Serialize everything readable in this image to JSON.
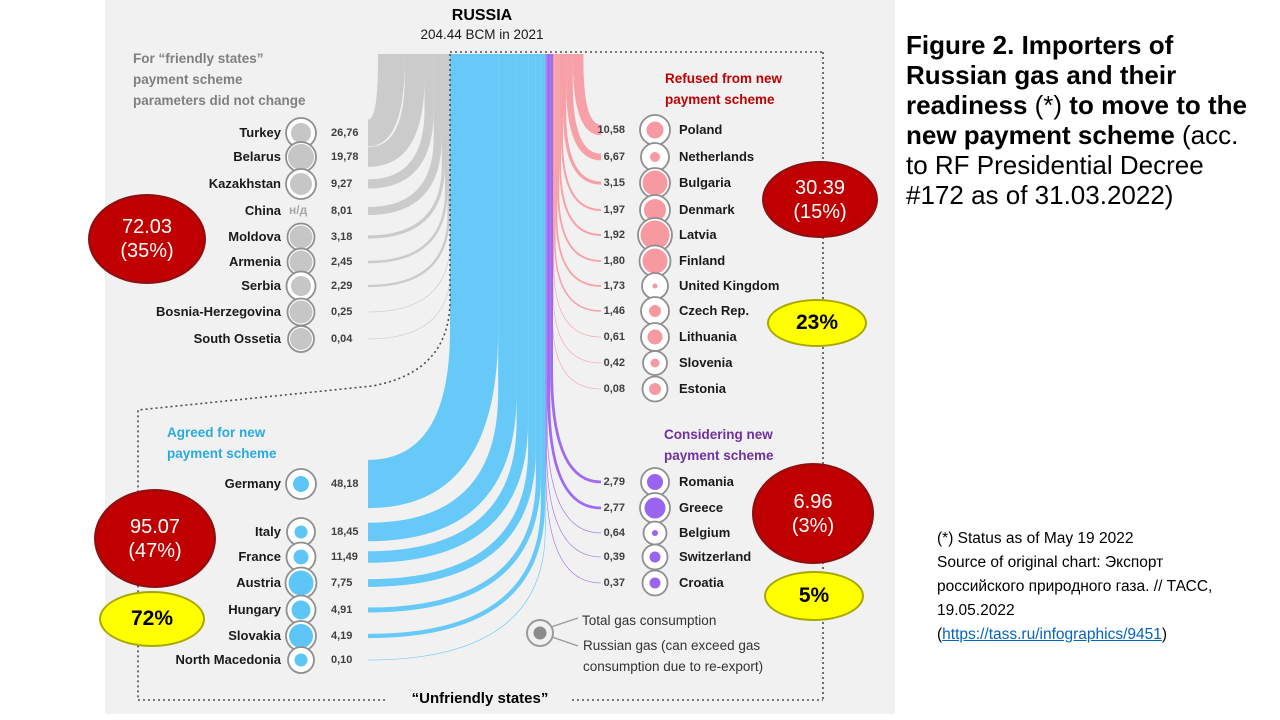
{
  "figure_caption": {
    "bold1": "Figure 2. Importers of Russian gas and their readiness ",
    "star": "(*)",
    "bold2": " to move to the new payment scheme",
    "regular": " (acc. to RF Presidential Decree #172 as of 31.03.2022)"
  },
  "source_note": {
    "status_line": "(*) Status as of May 19 2022",
    "source_text": "Source of original chart: Экспорт российского природного газа. // ТАСС, 19.05.2022",
    "link_prefix": "(",
    "link_text": "https://tass.ru/infographics/9451",
    "link_suffix": ")"
  },
  "chart_data": {
    "type": "sankey",
    "title": "RUSSIA",
    "subtitle": "204.44 BCM in 2021",
    "unit": "BCM",
    "total": 204.44,
    "unfriendly_label": "“Unfriendly states”",
    "legend": {
      "total_label": "Total gas consumption",
      "russian_label": "Russian gas (can exceed gas consumption  due to re-export)",
      "total_color": "#f1f1f1",
      "russian_color": "#8c8c8c"
    },
    "groups": [
      {
        "id": "friendly",
        "header": "For “friendly states”\npayment scheme\nparameters did not change",
        "header_color": "#7f7f7f",
        "flow_color": "#c8c8c8",
        "circle_color": "#c6c6c6",
        "total": {
          "value": "72.03",
          "share": "(35%)"
        },
        "countries": [
          {
            "name": "Turkey",
            "value": "26,76",
            "num": 26.76,
            "outer": 30,
            "inner": 20
          },
          {
            "name": "Belarus",
            "value": "19,78",
            "num": 19.78,
            "outer": 30,
            "inner": 26
          },
          {
            "name": "Kazakhstan",
            "value": "9,27",
            "num": 9.27,
            "outer": 30,
            "inner": 22
          },
          {
            "name": "China",
            "value": "8,01",
            "num": 8.01,
            "na": "н/д"
          },
          {
            "name": "Moldova",
            "value": "3,18",
            "num": 3.18,
            "outer": 27,
            "inner": 23
          },
          {
            "name": "Armenia",
            "value": "2,45",
            "num": 2.45,
            "outer": 27,
            "inner": 23
          },
          {
            "name": "Serbia",
            "value": "2,29",
            "num": 2.29,
            "outer": 29,
            "inner": 20
          },
          {
            "name": "Bosnia-Herzegovina",
            "value": "0,25",
            "num": 0.25,
            "outer": 27,
            "inner": 23
          },
          {
            "name": "South Ossetia",
            "value": "0,04",
            "num": 0.04,
            "outer": 26,
            "inner": 22
          }
        ]
      },
      {
        "id": "refused",
        "header": "Refused from new\npayment scheme",
        "header_color": "#c00000",
        "flow_color": "#f79ba2",
        "circle_color": "#f799a1",
        "total": {
          "value": "30.39",
          "share": "(15%)"
        },
        "share_badge": "23%",
        "countries": [
          {
            "name": "Poland",
            "value": "10,58",
            "num": 10.58,
            "outer": 30,
            "inner": 17
          },
          {
            "name": " Netherlands",
            "value": "6,67",
            "num": 6.67,
            "outer": 28,
            "inner": 10
          },
          {
            "name": "Bulgaria",
            "value": "3,15",
            "num": 3.15,
            "outer": 30,
            "inner": 25
          },
          {
            "name": "Denmark",
            "value": "1,97",
            "num": 1.97,
            "outer": 30,
            "inner": 22
          },
          {
            "name": "Latvia",
            "value": "1,92",
            "num": 1.92,
            "outer": 34,
            "inner": 29
          },
          {
            "name": " Finland",
            "value": "1,80",
            "num": 1.8,
            "outer": 31,
            "inner": 25
          },
          {
            "name": "United Kingdom",
            "value": "1,73",
            "num": 1.73,
            "outer": 26,
            "inner": 5
          },
          {
            "name": "Czech Rep.",
            "value": "1,46",
            "num": 1.46,
            "outer": 28,
            "inner": 12
          },
          {
            "name": "Lithuania",
            "value": "0,61",
            "num": 0.61,
            "outer": 28,
            "inner": 15
          },
          {
            "name": "Slovenia",
            "value": "0,42",
            "num": 0.42,
            "outer": 24,
            "inner": 9
          },
          {
            "name": " Estonia",
            "value": "0,08",
            "num": 0.08,
            "outer": 25,
            "inner": 12
          }
        ]
      },
      {
        "id": "agreed",
        "header": "Agreed for new\npayment scheme",
        "header_color": "#29abe2",
        "flow_color": "#5ec6f7",
        "circle_color": "#5ec6f7",
        "total": {
          "value": "95.07",
          "share": "(47%)"
        },
        "share_badge": "72%",
        "countries": [
          {
            "name": "Germany",
            "value": "48,18",
            "num": 48.18,
            "outer": 30,
            "inner": 16
          },
          {
            "name": "Italy",
            "value": "18,45",
            "num": 18.45,
            "outer": 28,
            "inner": 13
          },
          {
            "name": "France",
            "value": "11,49",
            "num": 11.49,
            "outer": 29,
            "inner": 15
          },
          {
            "name": "Austria",
            "value": "7,75",
            "num": 7.75,
            "outer": 31,
            "inner": 25
          },
          {
            "name": "Hungary",
            "value": "4,91",
            "num": 4.91,
            "outer": 29,
            "inner": 19
          },
          {
            "name": "Slovakia",
            "value": "4,19",
            "num": 4.19,
            "outer": 30,
            "inner": 24
          },
          {
            "name": "North Macedonia",
            "value": "0,10",
            "num": 0.1,
            "outer": 26,
            "inner": 13
          }
        ]
      },
      {
        "id": "considering",
        "header": "Considering new\npayment scheme",
        "header_color": "#7030a0",
        "flow_color": "#9a63f0",
        "circle_color": "#9a63f0",
        "total": {
          "value": "6.96",
          "share": "(3%)"
        },
        "share_badge": "5%",
        "countries": [
          {
            "name": "Romania",
            "value": "2,79",
            "num": 2.79,
            "outer": 28,
            "inner": 16
          },
          {
            "name": "Greece",
            "value": "2,77",
            "num": 2.77,
            "outer": 30,
            "inner": 21
          },
          {
            "name": "Belgium",
            "value": "0,64",
            "num": 0.64,
            "outer": 23,
            "inner": 6
          },
          {
            "name": "Switzerland",
            "value": "0,39",
            "num": 0.39,
            "outer": 25,
            "inner": 11
          },
          {
            "name": "Croatia",
            "value": "0,37",
            "num": 0.37,
            "outer": 25,
            "inner": 11
          }
        ]
      }
    ]
  }
}
